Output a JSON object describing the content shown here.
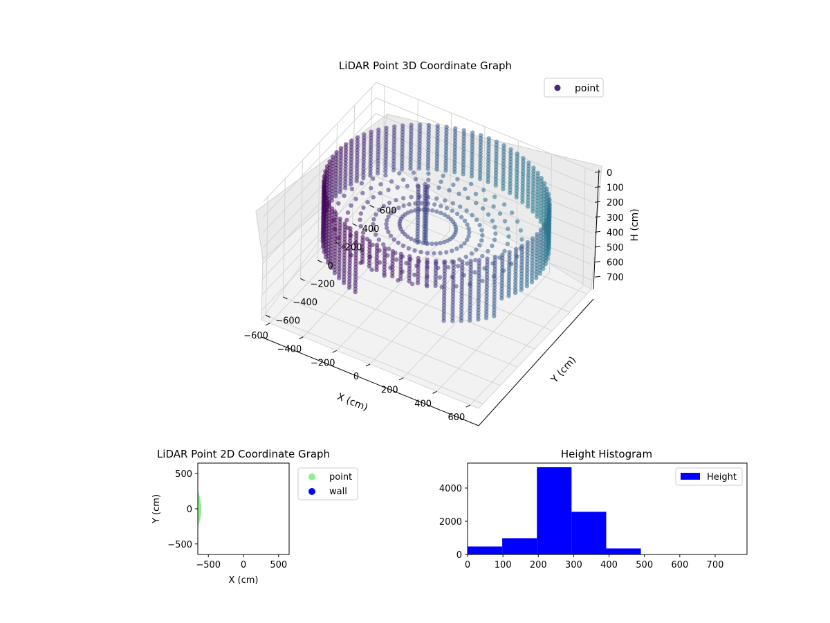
{
  "chart_data": [
    {
      "type": "scatter",
      "title": "LiDAR Point 3D Coordinate Graph",
      "xlabel": "X (cm)",
      "ylabel": "Y (cm)",
      "zlabel": "H (cm)",
      "xlim": [
        -650,
        650
      ],
      "ylim": [
        -650,
        650
      ],
      "zlim": [
        0,
        760
      ],
      "z_inverted": true,
      "xticks": [
        "−600",
        "−400",
        "−200",
        "0",
        "200",
        "400",
        "600"
      ],
      "yticks": [
        "−600",
        "−400",
        "−200",
        "0",
        "200",
        "400",
        "600"
      ],
      "zticks": [
        "0",
        "100",
        "200",
        "300",
        "400",
        "500",
        "600",
        "700"
      ],
      "legend": {
        "position": "top-right",
        "entries": [
          "point"
        ]
      },
      "colormap": [
        "#440154",
        "#482878",
        "#3e4a89",
        "#31688e",
        "#26828e",
        "#35b779"
      ],
      "series": [
        {
          "name": "point",
          "description_points": [
            {
              "x": 0,
              "y": 0,
              "h": 300
            },
            {
              "x": 200,
              "y": -300,
              "h": 640
            },
            {
              "x": -300,
              "y": -400,
              "h": 650
            },
            {
              "x": 100,
              "y": -600,
              "h": 680
            }
          ]
        }
      ]
    },
    {
      "type": "scatter",
      "title": "LiDAR Point 2D Coordinate Graph",
      "xlabel": "X (cm)",
      "ylabel": "Y (cm)",
      "xlim": [
        -650,
        650
      ],
      "ylim": [
        -650,
        650
      ],
      "xticks": [
        "−500",
        "0",
        "500"
      ],
      "yticks": [
        "500",
        "0",
        "−500"
      ],
      "legend": {
        "position": "outside-right",
        "entries": [
          "point",
          "wall"
        ]
      },
      "series": [
        {
          "name": "point",
          "color": "#90ee90"
        },
        {
          "name": "wall",
          "color": "#0000ff"
        }
      ]
    },
    {
      "type": "bar",
      "title": "Height Histogram",
      "xlabel": "",
      "ylabel": "",
      "xlim": [
        0,
        790
      ],
      "ylim": [
        0,
        5500
      ],
      "xticks": [
        "0",
        "100",
        "200",
        "300",
        "400",
        "500",
        "600",
        "700"
      ],
      "yticks": [
        "0",
        "2000",
        "4000"
      ],
      "legend": {
        "position": "top-right",
        "entries": [
          "Height"
        ]
      },
      "bin_edges": [
        0,
        98,
        196,
        294,
        392,
        490,
        588,
        686,
        784
      ],
      "values": [
        480,
        980,
        5250,
        2570,
        360,
        0,
        0,
        0
      ],
      "series": [
        {
          "name": "Height",
          "color": "#0000ff"
        }
      ]
    }
  ]
}
